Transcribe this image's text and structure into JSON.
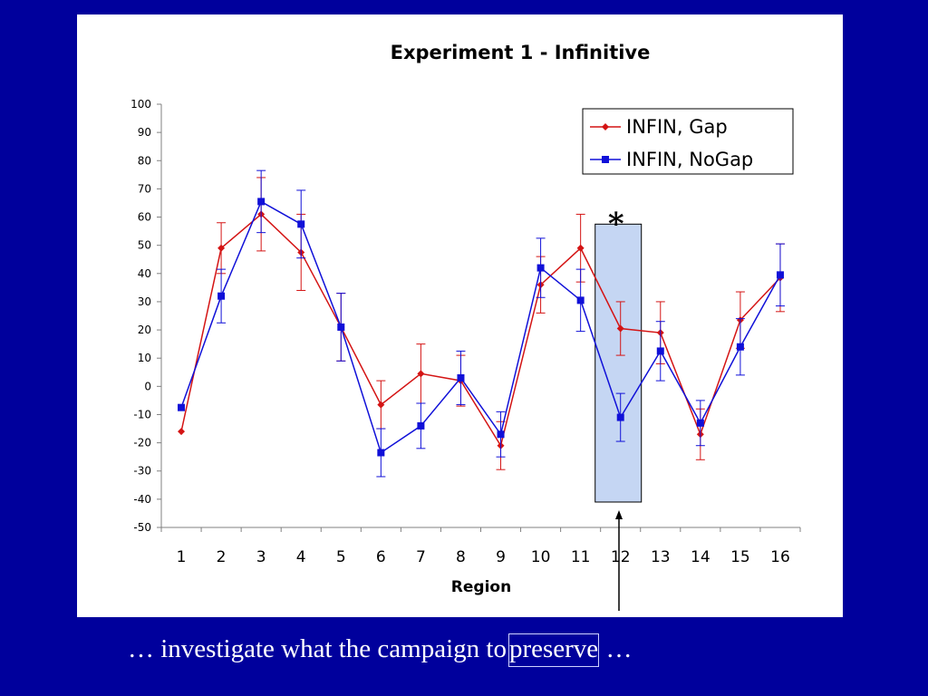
{
  "chart_data": {
    "type": "line",
    "title": "Experiment 1 - Infinitive",
    "xlabel": "Region",
    "ylabel": "",
    "ylim": [
      -50,
      100
    ],
    "yticks": [
      100,
      90,
      80,
      70,
      60,
      50,
      40,
      30,
      20,
      10,
      0,
      -10,
      -20,
      -30,
      -40,
      -50
    ],
    "categories": [
      "1",
      "2",
      "3",
      "4",
      "5",
      "6",
      "7",
      "8",
      "9",
      "10",
      "11",
      "12",
      "13",
      "14",
      "15",
      "16"
    ],
    "grid": false,
    "legend_position": "top-right",
    "series": [
      {
        "name": "INFIN, Gap",
        "color": "#d41414",
        "marker": "diamond",
        "values": [
          -16,
          49,
          61,
          47.5,
          21,
          -6.5,
          4.5,
          2,
          -21,
          36,
          49,
          20.5,
          19,
          -17,
          23.5,
          38.5
        ],
        "errors": [
          null,
          9,
          13,
          13.5,
          12,
          8.5,
          10.5,
          9,
          8.5,
          10,
          12,
          9.5,
          11,
          9,
          10,
          12
        ]
      },
      {
        "name": "INFIN, NoGap",
        "color": "#1010d8",
        "marker": "square",
        "values": [
          -7.5,
          32,
          65.5,
          57.5,
          21,
          -23.5,
          -14,
          3,
          -17,
          42,
          30.5,
          -11,
          12.5,
          -13,
          14,
          39.5
        ],
        "errors": [
          null,
          9.5,
          11,
          12,
          12,
          8.5,
          8,
          9.5,
          8,
          10.5,
          11,
          8.5,
          10.5,
          8,
          10,
          11
        ]
      }
    ],
    "highlight": {
      "category": "12",
      "y_from": -41,
      "y_to": 57.5,
      "marker": "*"
    }
  },
  "caption": {
    "before": "… investigate what the campaign to",
    "boxed_word": "preserve",
    "after": " …"
  }
}
